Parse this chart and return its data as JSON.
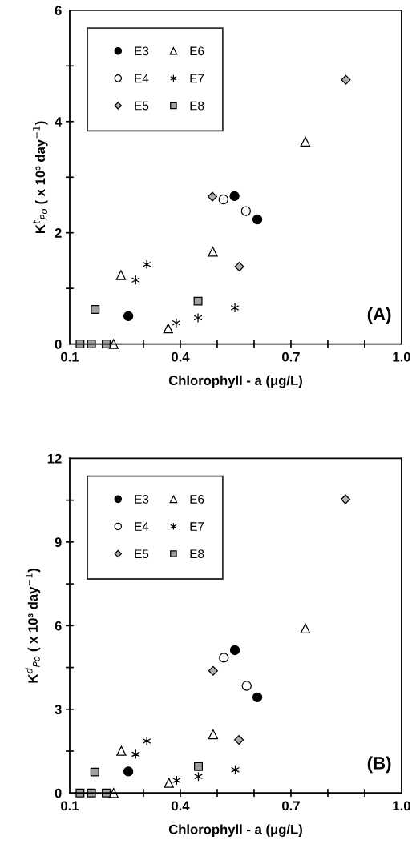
{
  "chart_data": [
    {
      "type": "scatter",
      "xlabel": "Chlorophyll - a (μg/L)",
      "ylabel": "K$^{t}$$_{Po}$ ( x 10³ day$^{−1}$)",
      "annotations": [
        "(A)"
      ],
      "xlim": [
        0.1,
        1.0
      ],
      "ylim": [
        0,
        6
      ],
      "xticks": [
        {
          "value": 0.1,
          "label": "0.1"
        },
        {
          "value": 0.2,
          "label": null
        },
        {
          "value": 0.3,
          "label": null
        },
        {
          "value": 0.4,
          "label": "0.4"
        },
        {
          "value": 0.5,
          "label": null
        },
        {
          "value": 0.6,
          "label": null
        },
        {
          "value": 0.7,
          "label": "0.7"
        },
        {
          "value": 0.8,
          "label": null
        },
        {
          "value": 0.9,
          "label": null
        },
        {
          "value": 1.0,
          "label": "1.0"
        }
      ],
      "yticks": [
        {
          "value": 0,
          "label": "0"
        },
        {
          "value": 1,
          "label": null
        },
        {
          "value": 2,
          "label": "2"
        },
        {
          "value": 3,
          "label": null
        },
        {
          "value": 4,
          "label": "4"
        },
        {
          "value": 5,
          "label": null
        },
        {
          "value": 6,
          "label": "6"
        }
      ],
      "grid": false,
      "legend": "top left",
      "series": [
        {
          "name": "E3",
          "color": "#000000",
          "marker": "circle",
          "x": [
            0.259,
            0.547,
            0.609
          ],
          "values": [
            0.5,
            2.66,
            2.24
          ]
        },
        {
          "name": "E4",
          "color": "#ffffff",
          "marker": "circle",
          "x": [
            0.517,
            0.578
          ],
          "values": [
            2.6,
            2.39
          ]
        },
        {
          "name": "E5",
          "color": "#b0b0b0",
          "marker": "diamond",
          "x": [
            0.487,
            0.56,
            0.849
          ],
          "values": [
            2.65,
            1.39,
            4.75
          ]
        },
        {
          "name": "E6",
          "color": "#ffffff",
          "marker": "triangle",
          "x": [
            0.219,
            0.239,
            0.367,
            0.488,
            0.739
          ],
          "values": [
            0,
            1.24,
            0.28,
            1.66,
            3.64
          ]
        },
        {
          "name": "E7",
          "color": "#000000",
          "marker": "cross",
          "x": [
            0.279,
            0.309,
            0.389,
            0.448,
            0.548
          ],
          "values": [
            1.15,
            1.43,
            0.38,
            0.47,
            0.65
          ]
        },
        {
          "name": "E8",
          "color": "#a0a0a0",
          "marker": "square",
          "x": [
            0.128,
            0.159,
            0.169,
            0.199,
            0.448
          ],
          "values": [
            0,
            0,
            0.62,
            0,
            0.77
          ]
        }
      ]
    },
    {
      "type": "scatter",
      "xlabel": "Chlorophyll - a (μg/L)",
      "ylabel": "K$^{d}$$_{Po}$ ( x 10³ day$^{−1}$)",
      "annotations": [
        "(B)"
      ],
      "xlim": [
        0.1,
        1.0
      ],
      "ylim": [
        0,
        12
      ],
      "xticks": [
        {
          "value": 0.1,
          "label": "0.1"
        },
        {
          "value": 0.2,
          "label": null
        },
        {
          "value": 0.3,
          "label": null
        },
        {
          "value": 0.4,
          "label": "0.4"
        },
        {
          "value": 0.5,
          "label": null
        },
        {
          "value": 0.6,
          "label": null
        },
        {
          "value": 0.7,
          "label": "0.7"
        },
        {
          "value": 0.8,
          "label": null
        },
        {
          "value": 0.9,
          "label": null
        },
        {
          "value": 1.0,
          "label": "1.0"
        }
      ],
      "yticks": [
        {
          "value": 0,
          "label": "0"
        },
        {
          "value": 1.5,
          "label": null
        },
        {
          "value": 3,
          "label": "3"
        },
        {
          "value": 4.5,
          "label": null
        },
        {
          "value": 6,
          "label": "6"
        },
        {
          "value": 7.5,
          "label": null
        },
        {
          "value": 9,
          "label": "9"
        },
        {
          "value": 10.5,
          "label": null
        },
        {
          "value": 12,
          "label": "12"
        }
      ],
      "grid": false,
      "legend": "top left",
      "series": [
        {
          "name": "E3",
          "color": "#000000",
          "marker": "circle",
          "x": [
            0.259,
            0.548,
            0.609
          ],
          "values": [
            0.77,
            5.12,
            3.43
          ]
        },
        {
          "name": "E4",
          "color": "#ffffff",
          "marker": "circle",
          "x": [
            0.518,
            0.58
          ],
          "values": [
            4.85,
            3.84
          ]
        },
        {
          "name": "E5",
          "color": "#b0b0b0",
          "marker": "diamond",
          "x": [
            0.489,
            0.559,
            0.848
          ],
          "values": [
            4.38,
            1.9,
            10.53
          ]
        },
        {
          "name": "E6",
          "color": "#ffffff",
          "marker": "triangle",
          "x": [
            0.219,
            0.24,
            0.369,
            0.489,
            0.739
          ],
          "values": [
            0,
            1.51,
            0.36,
            2.1,
            5.9
          ]
        },
        {
          "name": "E7",
          "color": "#000000",
          "marker": "cross",
          "x": [
            0.279,
            0.309,
            0.39,
            0.449,
            0.549
          ],
          "values": [
            1.39,
            1.86,
            0.45,
            0.59,
            0.83
          ]
        },
        {
          "name": "E8",
          "color": "#a0a0a0",
          "marker": "square",
          "x": [
            0.128,
            0.159,
            0.168,
            0.199,
            0.449
          ],
          "values": [
            0,
            0,
            0.75,
            0,
            0.95
          ]
        }
      ]
    }
  ]
}
